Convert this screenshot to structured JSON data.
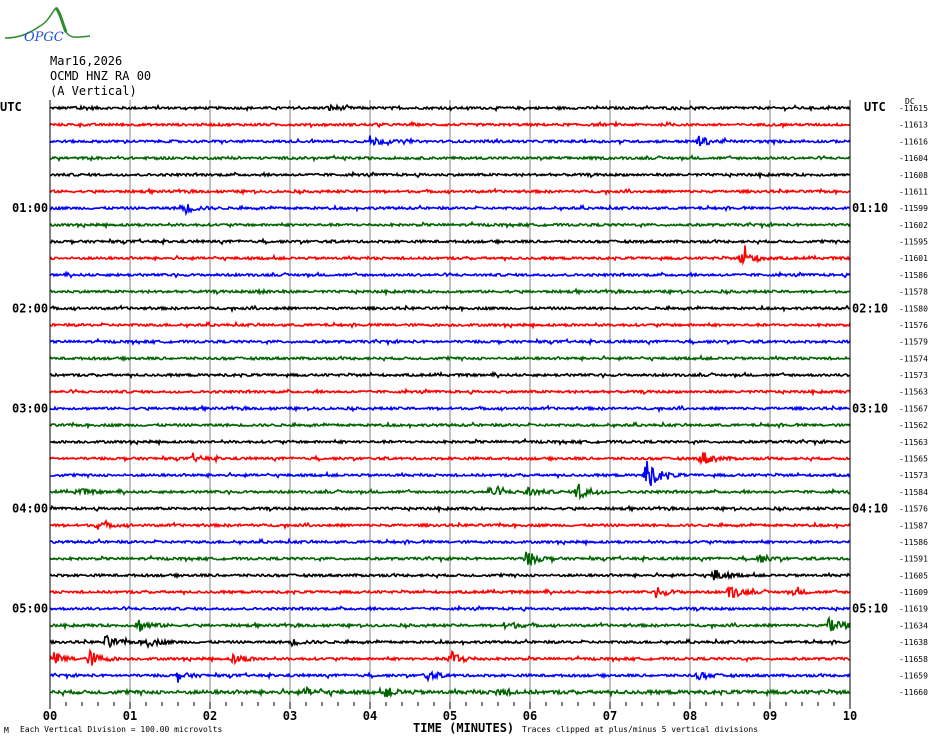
{
  "logo": {
    "text": "OPGC",
    "curve_color": "#2e8b2e",
    "text_color": "#1f4fd6"
  },
  "header": {
    "date": "Mar16,2026",
    "station": "OCMD HNZ RA 00",
    "component": "(A Vertical)"
  },
  "chart_data": {
    "type": "line",
    "subtype": "helicorder",
    "xlabel": "TIME (MINUTES)",
    "xlim": [
      0,
      10
    ],
    "x_tick_labels": [
      "00",
      "01",
      "02",
      "03",
      "04",
      "05",
      "06",
      "07",
      "08",
      "09",
      "10"
    ],
    "x_minor_tick_step": 0.2,
    "left_label_header": "UTC",
    "right_label_header": "UTC",
    "dc_header": "DC",
    "trace_colors": [
      "#000000",
      "#ff0000",
      "#0000ff",
      "#006400"
    ],
    "grid": true,
    "grid_color": "#808080",
    "left_hour_labels": [
      {
        "trace": 6,
        "label": "01:00"
      },
      {
        "trace": 12,
        "label": "02:00"
      },
      {
        "trace": 18,
        "label": "03:00"
      },
      {
        "trace": 24,
        "label": "04:00"
      },
      {
        "trace": 30,
        "label": "05:00"
      }
    ],
    "right_hour_labels": [
      {
        "trace": 6,
        "label": "01:10"
      },
      {
        "trace": 12,
        "label": "02:10"
      },
      {
        "trace": 18,
        "label": "03:10"
      },
      {
        "trace": 24,
        "label": "04:10"
      },
      {
        "trace": 30,
        "label": "05:10"
      }
    ],
    "dc_offsets": [
      "-11615",
      "-11613",
      "-11616",
      "-11604",
      "-11608",
      "-11611",
      "-11599",
      "-11602",
      "-11595",
      "-11601",
      "-11586",
      "-11578",
      "-11580",
      "-11576",
      "-11579",
      "-11574",
      "-11573",
      "-11563",
      "-11567",
      "-11562",
      "-11563",
      "-11565",
      "-11573",
      "-11584",
      "-11576",
      "-11587",
      "-11586",
      "-11591",
      "-11605",
      "-11609",
      "-11619",
      "-11634",
      "-11638",
      "-11658",
      "-11659",
      "-11660"
    ],
    "vertical_division_uV": 100.0,
    "clip_divisions": 5,
    "events": [
      {
        "trace": 0,
        "minute": 0.3,
        "amp": 0.15
      },
      {
        "trace": 0,
        "minute": 3.5,
        "amp": 0.15
      },
      {
        "trace": 2,
        "minute": 4.0,
        "amp": 0.3
      },
      {
        "trace": 2,
        "minute": 8.1,
        "amp": 0.3
      },
      {
        "trace": 6,
        "minute": 1.65,
        "amp": 0.4
      },
      {
        "trace": 9,
        "minute": 8.65,
        "amp": 0.55
      },
      {
        "trace": 11,
        "minute": 2.6,
        "amp": 0.12
      },
      {
        "trace": 21,
        "minute": 1.8,
        "amp": 0.15
      },
      {
        "trace": 21,
        "minute": 8.15,
        "amp": 0.45
      },
      {
        "trace": 22,
        "minute": 7.45,
        "amp": 0.95
      },
      {
        "trace": 23,
        "minute": 0.35,
        "amp": 0.2
      },
      {
        "trace": 23,
        "minute": 5.5,
        "amp": 0.3
      },
      {
        "trace": 23,
        "minute": 5.95,
        "amp": 0.3
      },
      {
        "trace": 23,
        "minute": 6.6,
        "amp": 0.55
      },
      {
        "trace": 25,
        "minute": 0.6,
        "amp": 0.2
      },
      {
        "trace": 27,
        "minute": 5.95,
        "amp": 0.45
      },
      {
        "trace": 27,
        "minute": 8.85,
        "amp": 0.25
      },
      {
        "trace": 28,
        "minute": 8.3,
        "amp": 0.35
      },
      {
        "trace": 29,
        "minute": 7.6,
        "amp": 0.25
      },
      {
        "trace": 29,
        "minute": 8.5,
        "amp": 0.4
      },
      {
        "trace": 29,
        "minute": 9.3,
        "amp": 0.15
      },
      {
        "trace": 31,
        "minute": 1.1,
        "amp": 0.4
      },
      {
        "trace": 31,
        "minute": 5.7,
        "amp": 0.25
      },
      {
        "trace": 31,
        "minute": 9.75,
        "amp": 0.6
      },
      {
        "trace": 32,
        "minute": 0.7,
        "amp": 0.35
      },
      {
        "trace": 32,
        "minute": 1.2,
        "amp": 0.3
      },
      {
        "trace": 32,
        "minute": 3.0,
        "amp": 0.2
      },
      {
        "trace": 33,
        "minute": 0.05,
        "amp": 0.35
      },
      {
        "trace": 33,
        "minute": 0.5,
        "amp": 0.45
      },
      {
        "trace": 33,
        "minute": 2.3,
        "amp": 0.3
      },
      {
        "trace": 33,
        "minute": 5.0,
        "amp": 0.55
      },
      {
        "trace": 34,
        "minute": 1.6,
        "amp": 0.2
      },
      {
        "trace": 34,
        "minute": 4.7,
        "amp": 0.25
      },
      {
        "trace": 34,
        "minute": 8.1,
        "amp": 0.2
      },
      {
        "trace": 35,
        "minute": 3.2,
        "amp": 0.2
      },
      {
        "trace": 35,
        "minute": 4.2,
        "amp": 0.25
      },
      {
        "trace": 35,
        "minute": 5.6,
        "amp": 0.2
      }
    ]
  },
  "footer": {
    "scale_note": "Each Vertical Division =  100.00 microvolts",
    "clip_note": "Traces clipped at plus/minus 5 vertical divisions",
    "corner_mark": "M"
  }
}
